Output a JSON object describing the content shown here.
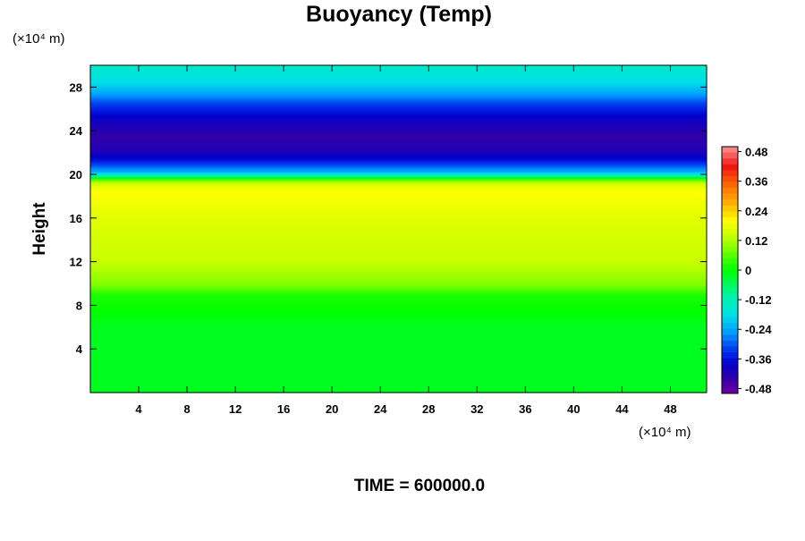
{
  "chart_data": {
    "type": "heatmap",
    "title": "Buoyancy (Temp)",
    "ylabel": "Height",
    "y_unit": "(×10⁴ m)",
    "x_unit": "(×10⁴ m)",
    "xlim": [
      0,
      51
    ],
    "ylim": [
      0,
      30
    ],
    "x_ticks": [
      4,
      8,
      12,
      16,
      20,
      24,
      28,
      32,
      36,
      40,
      44,
      48
    ],
    "y_ticks": [
      4,
      8,
      12,
      16,
      20,
      24,
      28
    ],
    "colorbar": {
      "range": [
        -0.5,
        0.5
      ],
      "ticks": [
        0.48,
        0.36,
        0.24,
        0.12,
        0,
        -0.12,
        -0.24,
        -0.36,
        -0.48
      ]
    },
    "profile": {
      "height": [
        0,
        6,
        9,
        10,
        12,
        15,
        17,
        18.5,
        19.2,
        19.6,
        19.9,
        20.3,
        20.8,
        21.3,
        22.2,
        23.5,
        25,
        26.5,
        27.5,
        28.5,
        30
      ],
      "value": [
        -0.02,
        -0.02,
        0.02,
        0.09,
        0.14,
        0.16,
        0.18,
        0.2,
        0.15,
        0.04,
        -0.12,
        -0.24,
        -0.3,
        -0.36,
        -0.42,
        -0.44,
        -0.4,
        -0.32,
        -0.24,
        -0.18,
        -0.15
      ]
    }
  },
  "footer": {
    "time_label": "TIME = 600000.0"
  }
}
